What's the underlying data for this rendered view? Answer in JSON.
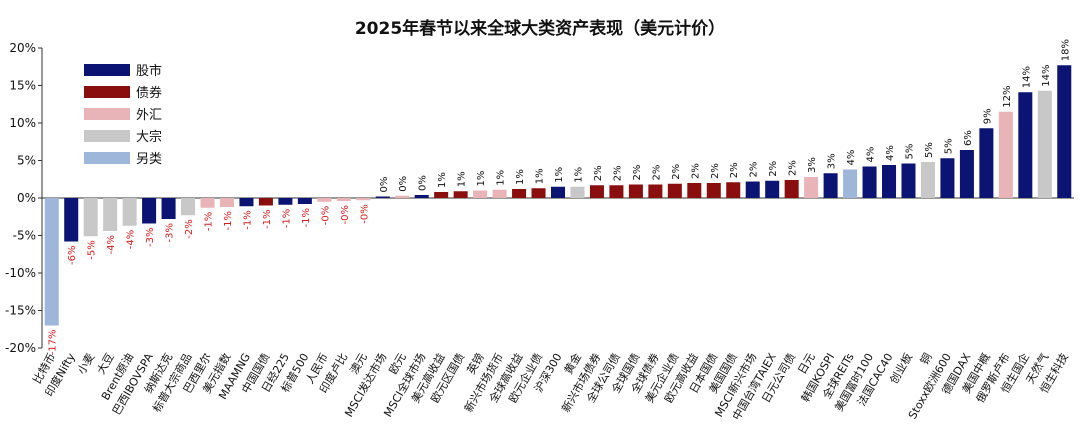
{
  "chart_data": {
    "type": "bar",
    "title": "2025年春节以来全球大类资产表现（美元计价）",
    "xlabel": "",
    "ylabel": "",
    "ylim": [
      -20,
      20
    ],
    "yticks": [
      "-20%",
      "-15%",
      "-10%",
      "-5%",
      "0%",
      "5%",
      "10%",
      "15%",
      "20%"
    ],
    "ytick_values": [
      -20,
      -15,
      -10,
      -5,
      0,
      5,
      10,
      15,
      20
    ],
    "grid": false,
    "legend_position": "top-left",
    "legend": [
      {
        "key": "stock",
        "label": "股市",
        "color": "#0c1473"
      },
      {
        "key": "bond",
        "label": "债券",
        "color": "#8b0e0e"
      },
      {
        "key": "fx",
        "label": "外汇",
        "color": "#e8b4b8"
      },
      {
        "key": "commodity",
        "label": "大宗",
        "color": "#c8c8c8"
      },
      {
        "key": "alt",
        "label": "另类",
        "color": "#9db6da"
      }
    ],
    "bars": [
      {
        "label": "比特币",
        "value": -17.0,
        "text": "-17%",
        "type": "alt"
      },
      {
        "label": "印度Nifty",
        "value": -5.8,
        "text": "-6%",
        "type": "stock"
      },
      {
        "label": "小麦",
        "value": -5.1,
        "text": "-5%",
        "type": "commodity"
      },
      {
        "label": "大豆",
        "value": -4.4,
        "text": "-4%",
        "type": "commodity"
      },
      {
        "label": "Brent原油",
        "value": -3.7,
        "text": "-4%",
        "type": "commodity"
      },
      {
        "label": "巴西IBOVSPA",
        "value": -3.4,
        "text": "-3%",
        "type": "stock"
      },
      {
        "label": "纳斯达克",
        "value": -2.8,
        "text": "-3%",
        "type": "stock"
      },
      {
        "label": "标普大宗商品",
        "value": -2.3,
        "text": "-2%",
        "type": "commodity"
      },
      {
        "label": "巴西里尔",
        "value": -1.3,
        "text": "-1%",
        "type": "fx"
      },
      {
        "label": "美元指数",
        "value": -1.2,
        "text": "-1%",
        "type": "fx"
      },
      {
        "label": "MAAMNG",
        "value": -1.1,
        "text": "-1%",
        "type": "stock"
      },
      {
        "label": "中国国债",
        "value": -1.0,
        "text": "-1%",
        "type": "bond"
      },
      {
        "label": "日经225",
        "value": -0.9,
        "text": "-1%",
        "type": "stock"
      },
      {
        "label": "标普500",
        "value": -0.8,
        "text": "-1%",
        "type": "stock"
      },
      {
        "label": "人民币",
        "value": -0.5,
        "text": "-0%",
        "type": "fx"
      },
      {
        "label": "印度卢比",
        "value": -0.4,
        "text": "-0%",
        "type": "fx"
      },
      {
        "label": "澳元",
        "value": -0.3,
        "text": "-0%",
        "type": "fx"
      },
      {
        "label": "MSCI发达市场",
        "value": 0.2,
        "text": "0%",
        "type": "stock"
      },
      {
        "label": "欧元",
        "value": 0.3,
        "text": "0%",
        "type": "fx"
      },
      {
        "label": "MSCI全球市场",
        "value": 0.4,
        "text": "0%",
        "type": "stock"
      },
      {
        "label": "美元高收益",
        "value": 0.8,
        "text": "1%",
        "type": "bond"
      },
      {
        "label": "欧元区国债",
        "value": 0.9,
        "text": "1%",
        "type": "bond"
      },
      {
        "label": "英镑",
        "value": 1.0,
        "text": "1%",
        "type": "fx"
      },
      {
        "label": "新兴市场货币",
        "value": 1.1,
        "text": "1%",
        "type": "fx"
      },
      {
        "label": "全球高收益",
        "value": 1.2,
        "text": "1%",
        "type": "bond"
      },
      {
        "label": "欧元企业债",
        "value": 1.3,
        "text": "1%",
        "type": "bond"
      },
      {
        "label": "沪深300",
        "value": 1.5,
        "text": "1%",
        "type": "stock"
      },
      {
        "label": "黄金",
        "value": 1.5,
        "text": "1%",
        "type": "commodity"
      },
      {
        "label": "新兴市场债券",
        "value": 1.7,
        "text": "2%",
        "type": "bond"
      },
      {
        "label": "全球公司债",
        "value": 1.7,
        "text": "2%",
        "type": "bond"
      },
      {
        "label": "全球国债",
        "value": 1.8,
        "text": "2%",
        "type": "bond"
      },
      {
        "label": "全球债券",
        "value": 1.8,
        "text": "2%",
        "type": "bond"
      },
      {
        "label": "美元企业债",
        "value": 1.9,
        "text": "2%",
        "type": "bond"
      },
      {
        "label": "欧元高收益",
        "value": 2.0,
        "text": "2%",
        "type": "bond"
      },
      {
        "label": "日本国债",
        "value": 2.0,
        "text": "2%",
        "type": "bond"
      },
      {
        "label": "美国国债",
        "value": 2.1,
        "text": "2%",
        "type": "bond"
      },
      {
        "label": "MSCI新兴市场",
        "value": 2.2,
        "text": "2%",
        "type": "stock"
      },
      {
        "label": "中国台湾TAIEX",
        "value": 2.3,
        "text": "2%",
        "type": "stock"
      },
      {
        "label": "日元公司债",
        "value": 2.4,
        "text": "2%",
        "type": "bond"
      },
      {
        "label": "日元",
        "value": 2.8,
        "text": "3%",
        "type": "fx"
      },
      {
        "label": "韩国KOSPI",
        "value": 3.3,
        "text": "3%",
        "type": "stock"
      },
      {
        "label": "全球REITs",
        "value": 3.8,
        "text": "4%",
        "type": "alt"
      },
      {
        "label": "美国富时100",
        "value": 4.2,
        "text": "4%",
        "type": "stock"
      },
      {
        "label": "法国CAC40",
        "value": 4.4,
        "text": "4%",
        "type": "stock"
      },
      {
        "label": "创业板",
        "value": 4.6,
        "text": "5%",
        "type": "stock"
      },
      {
        "label": "铜",
        "value": 4.8,
        "text": "5%",
        "type": "commodity"
      },
      {
        "label": "Stoxx欧洲600",
        "value": 5.3,
        "text": "5%",
        "type": "stock"
      },
      {
        "label": "德国DAX",
        "value": 6.4,
        "text": "6%",
        "type": "stock"
      },
      {
        "label": "美国中概",
        "value": 9.3,
        "text": "9%",
        "type": "stock"
      },
      {
        "label": "俄罗斯卢布",
        "value": 11.5,
        "text": "12%",
        "type": "fx"
      },
      {
        "label": "恒生国企",
        "value": 14.1,
        "text": "14%",
        "type": "stock"
      },
      {
        "label": "天然气",
        "value": 14.3,
        "text": "14%",
        "type": "commodity"
      },
      {
        "label": "恒生科技",
        "value": 17.7,
        "text": "18%",
        "type": "stock"
      }
    ]
  }
}
